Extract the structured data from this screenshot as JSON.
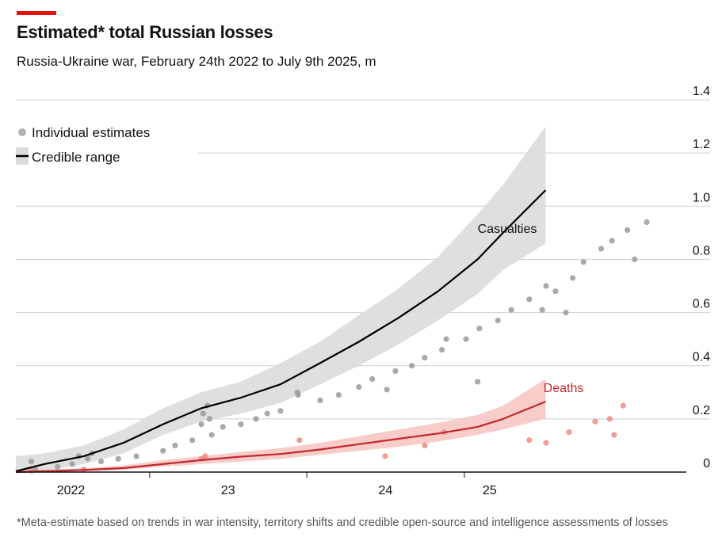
{
  "header": {
    "title": "Estimated* total Russian losses",
    "subtitle": "Russia-Ukraine war, February 24th 2022 to July 9th 2025, m"
  },
  "footnote": "*Meta-estimate based on trends in war intensity, territory shifts and credible open-source and intelligence assessments of losses",
  "legend": {
    "estimates": "Individual estimates",
    "range": "Credible range"
  },
  "colors": {
    "brand_red": "#e3120b",
    "casualties_line": "#000000",
    "casualties_band": "#dcdcdc",
    "casualties_dots": "#9a9a9a",
    "deaths_line": "#c1272d",
    "deaths_band": "#f7c3c0",
    "deaths_dots": "#ec8c87"
  },
  "chart_data": {
    "type": "line",
    "y_unit": "m",
    "xlim": [
      "2022-02-24",
      "2025-07-09"
    ],
    "ylim": [
      0,
      1.4
    ],
    "y_ticks": [
      0,
      0.2,
      0.4,
      0.6,
      0.8,
      1.0,
      1.2,
      1.4
    ],
    "y_tick_labels": [
      "0",
      "0.2",
      "0.4",
      "0.6",
      "0.8",
      "1.0",
      "1.2",
      "1.4"
    ],
    "x_tick_labels": [
      {
        "date": "2022-07-02",
        "label": "2022"
      },
      {
        "date": "2023-07-02",
        "label": "23"
      },
      {
        "date": "2024-07-02",
        "label": "24"
      },
      {
        "date": "2025-03-01",
        "label": "25"
      }
    ],
    "x_ticks": [
      "2023-01-01",
      "2024-01-01",
      "2025-01-01"
    ],
    "gridlines": "horizontal",
    "legend_position": "top-left",
    "series": [
      {
        "name": "Casualties",
        "x": [
          "2022-02-24",
          "2022-05-01",
          "2022-08-01",
          "2022-11-01",
          "2023-02-01",
          "2023-05-01",
          "2023-08-01",
          "2023-11-01",
          "2024-02-01",
          "2024-05-01",
          "2024-08-01",
          "2024-11-01",
          "2025-02-01",
          "2025-04-01",
          "2025-07-09"
        ],
        "y": [
          0.003,
          0.03,
          0.06,
          0.11,
          0.18,
          0.24,
          0.28,
          0.33,
          0.41,
          0.49,
          0.58,
          0.68,
          0.8,
          0.9,
          1.06
        ],
        "low": [
          0.0,
          0.005,
          0.03,
          0.07,
          0.14,
          0.19,
          0.22,
          0.26,
          0.33,
          0.4,
          0.48,
          0.57,
          0.67,
          0.76,
          0.86
        ],
        "high": [
          0.06,
          0.07,
          0.1,
          0.16,
          0.24,
          0.3,
          0.34,
          0.41,
          0.49,
          0.59,
          0.69,
          0.81,
          0.97,
          1.08,
          1.3
        ],
        "estimates": [
          [
            "2022-04-01",
            0.04
          ],
          [
            "2022-04-10",
            0.01
          ],
          [
            "2022-06-01",
            0.02
          ],
          [
            "2022-07-05",
            0.03
          ],
          [
            "2022-07-20",
            0.06
          ],
          [
            "2022-08-10",
            0.05
          ],
          [
            "2022-08-20",
            0.07
          ],
          [
            "2022-09-10",
            0.04
          ],
          [
            "2022-10-20",
            0.05
          ],
          [
            "2022-12-01",
            0.06
          ],
          [
            "2023-02-01",
            0.08
          ],
          [
            "2023-03-01",
            0.1
          ],
          [
            "2023-04-10",
            0.12
          ],
          [
            "2023-05-01",
            0.18
          ],
          [
            "2023-05-05",
            0.22
          ],
          [
            "2023-05-15",
            0.25
          ],
          [
            "2023-05-20",
            0.2
          ],
          [
            "2023-05-25",
            0.14
          ],
          [
            "2023-06-20",
            0.17
          ],
          [
            "2023-08-01",
            0.18
          ],
          [
            "2023-09-05",
            0.2
          ],
          [
            "2023-10-01",
            0.22
          ],
          [
            "2023-11-01",
            0.23
          ],
          [
            "2023-12-10",
            0.3
          ],
          [
            "2023-12-12",
            0.29
          ],
          [
            "2024-02-01",
            0.27
          ],
          [
            "2024-03-15",
            0.29
          ],
          [
            "2024-05-01",
            0.32
          ],
          [
            "2024-06-01",
            0.35
          ],
          [
            "2024-07-05",
            0.31
          ],
          [
            "2024-07-25",
            0.38
          ],
          [
            "2024-09-01",
            0.4
          ],
          [
            "2024-10-01",
            0.43
          ],
          [
            "2024-11-10",
            0.46
          ],
          [
            "2024-11-20",
            0.5
          ],
          [
            "2025-01-05",
            0.5
          ],
          [
            "2025-02-01",
            0.34
          ],
          [
            "2025-02-05",
            0.54
          ],
          [
            "2025-03-20",
            0.57
          ],
          [
            "2025-04-20",
            0.61
          ],
          [
            "2025-06-01",
            0.65
          ],
          [
            "2025-07-01",
            0.61
          ],
          [
            "2025-07-10",
            0.7
          ],
          [
            "2025-08-01",
            0.68
          ],
          [
            "2025-08-25",
            0.6
          ],
          [
            "2025-09-10",
            0.73
          ],
          [
            "2025-10-05",
            0.79
          ],
          [
            "2025-11-15",
            0.84
          ],
          [
            "2025-12-10",
            0.87
          ],
          [
            "2026-01-15",
            0.91
          ],
          [
            "2026-02-01",
            0.8
          ],
          [
            "2026-03-01",
            0.94
          ]
        ]
      },
      {
        "name": "Deaths",
        "x": [
          "2022-02-24",
          "2022-05-01",
          "2022-08-01",
          "2022-11-01",
          "2023-02-01",
          "2023-05-01",
          "2023-08-01",
          "2023-11-01",
          "2024-02-01",
          "2024-05-01",
          "2024-08-01",
          "2024-11-01",
          "2025-02-01",
          "2025-04-01",
          "2025-07-09"
        ],
        "y": [
          0.0,
          0.003,
          0.008,
          0.015,
          0.03,
          0.045,
          0.058,
          0.068,
          0.085,
          0.105,
          0.125,
          0.145,
          0.17,
          0.2,
          0.265
        ],
        "low": [
          0.0,
          0.0,
          0.003,
          0.008,
          0.02,
          0.03,
          0.04,
          0.05,
          0.065,
          0.08,
          0.095,
          0.115,
          0.14,
          0.16,
          0.2
        ],
        "high": [
          0.01,
          0.01,
          0.015,
          0.025,
          0.045,
          0.06,
          0.075,
          0.09,
          0.11,
          0.135,
          0.16,
          0.185,
          0.215,
          0.25,
          0.35
        ],
        "estimates": [
          [
            "2022-04-01",
            0.005
          ],
          [
            "2022-08-01",
            0.01
          ],
          [
            "2023-05-01",
            0.05
          ],
          [
            "2023-05-10",
            0.06
          ],
          [
            "2023-12-15",
            0.12
          ],
          [
            "2024-07-01",
            0.06
          ],
          [
            "2024-10-01",
            0.1
          ],
          [
            "2024-11-15",
            0.15
          ],
          [
            "2025-06-01",
            0.12
          ],
          [
            "2025-07-10",
            0.11
          ],
          [
            "2025-09-01",
            0.15
          ],
          [
            "2025-11-01",
            0.19
          ],
          [
            "2025-12-05",
            0.2
          ],
          [
            "2025-12-15",
            0.14
          ],
          [
            "2026-01-05",
            0.25
          ]
        ]
      }
    ]
  }
}
